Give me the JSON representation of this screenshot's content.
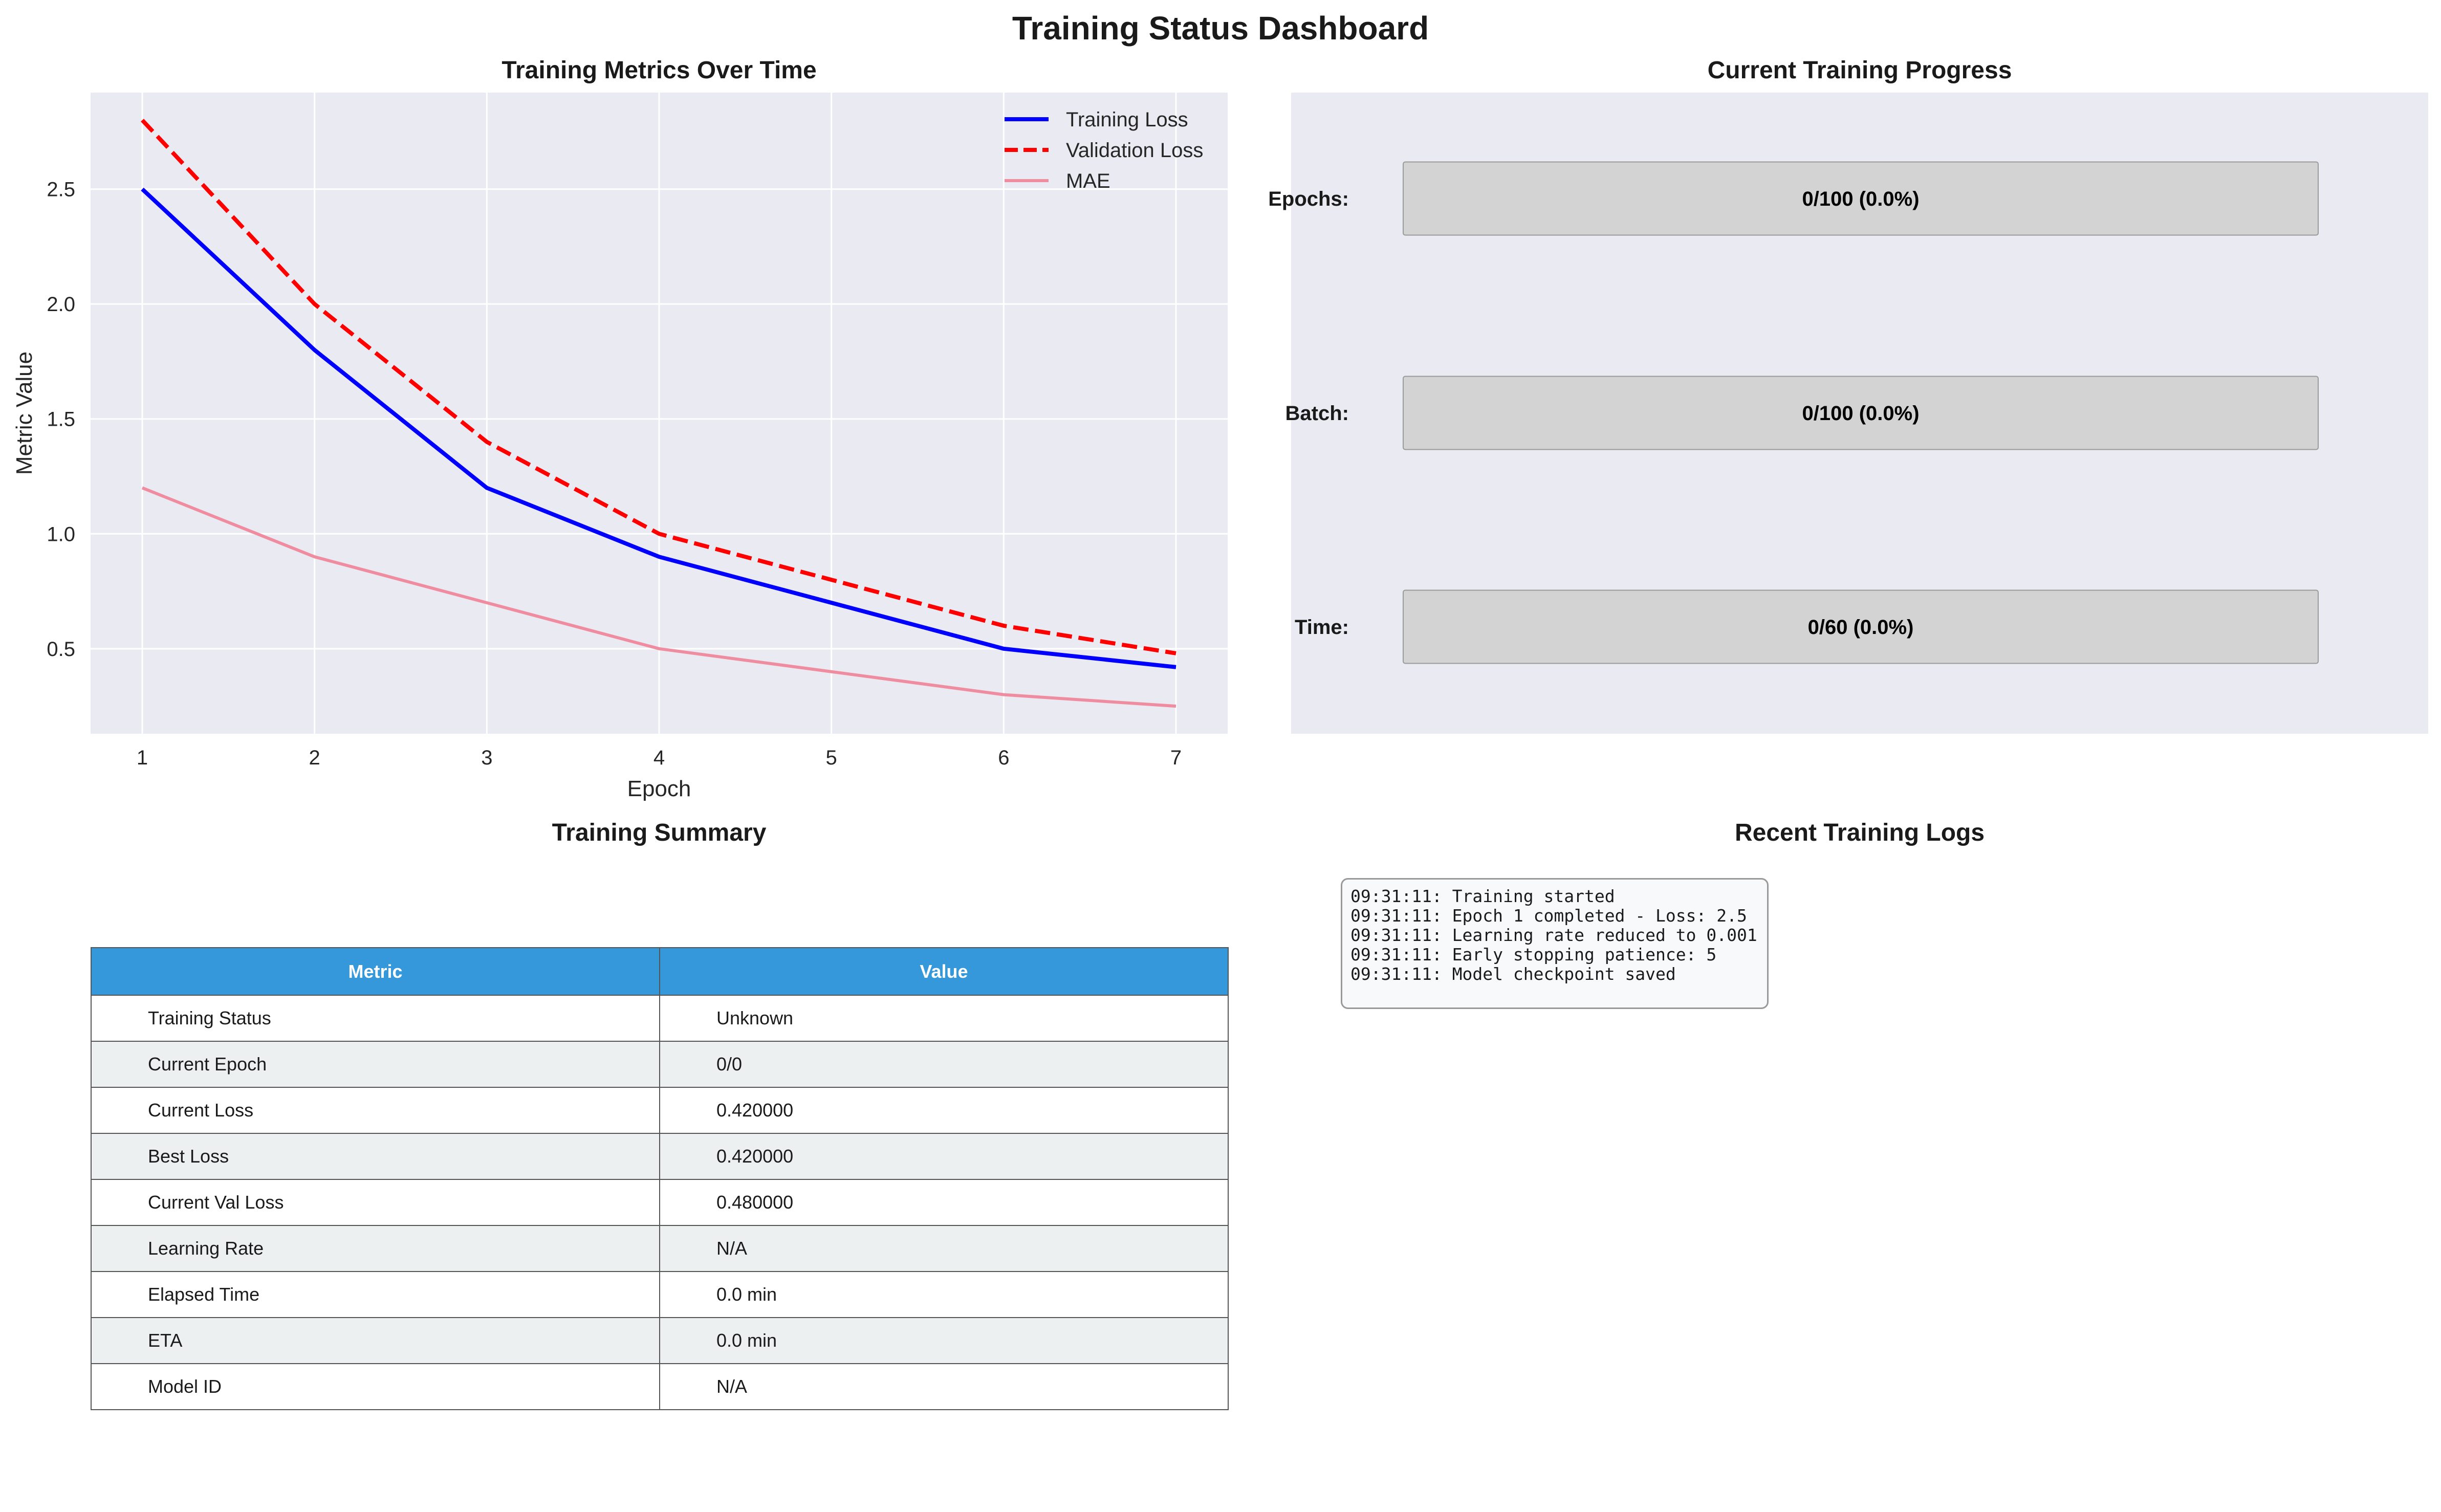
{
  "dashboard": {
    "title": "Training Status Dashboard"
  },
  "metrics_panel": {
    "title": "Training Metrics Over Time"
  },
  "progress_panel": {
    "title": "Current Training Progress",
    "bars": [
      {
        "label": "Epochs:",
        "text": "0/100 (0.0%)",
        "value": 0,
        "total": 100
      },
      {
        "label": "Batch:",
        "text": "0/100 (0.0%)",
        "value": 0,
        "total": 100
      },
      {
        "label": "Time:",
        "text": "0/60 (0.0%)",
        "value": 0,
        "total": 60
      }
    ]
  },
  "summary_panel": {
    "title": "Training Summary",
    "headers": [
      "Metric",
      "Value"
    ],
    "rows": [
      [
        "Training Status",
        "Unknown"
      ],
      [
        "Current Epoch",
        "0/0"
      ],
      [
        "Current Loss",
        "0.420000"
      ],
      [
        "Best Loss",
        "0.420000"
      ],
      [
        "Current Val Loss",
        "0.480000"
      ],
      [
        "Learning Rate",
        "N/A"
      ],
      [
        "Elapsed Time",
        "0.0 min"
      ],
      [
        "ETA",
        "0.0 min"
      ],
      [
        "Model ID",
        "N/A"
      ]
    ]
  },
  "logs_panel": {
    "title": "Recent Training Logs",
    "lines": [
      "09:31:11: Training started",
      "09:31:11: Epoch 1 completed - Loss: 2.5",
      "09:31:11: Learning rate reduced to 0.001",
      "09:31:11: Early stopping patience: 5",
      "09:31:11: Model checkpoint saved"
    ]
  },
  "chart_data": {
    "type": "line",
    "title": "Training Metrics Over Time",
    "xlabel": "Epoch",
    "ylabel": "Metric Value",
    "x": [
      1,
      2,
      3,
      4,
      5,
      6,
      7
    ],
    "xlim": [
      0.7,
      7.3
    ],
    "ylim": [
      0.13,
      2.92
    ],
    "xticks": [
      1,
      2,
      3,
      4,
      5,
      6,
      7
    ],
    "yticks": [
      0.5,
      1.0,
      1.5,
      2.0,
      2.5
    ],
    "grid": true,
    "legend": "top-right",
    "series": [
      {
        "name": "Training Loss",
        "values": [
          2.5,
          1.8,
          1.2,
          0.9,
          0.7,
          0.5,
          0.42
        ],
        "color": "#0000ff",
        "style": "solid"
      },
      {
        "name": "Validation Loss",
        "values": [
          2.8,
          2.0,
          1.4,
          1.0,
          0.8,
          0.6,
          0.48
        ],
        "color": "#ff0000",
        "style": "dashed"
      },
      {
        "name": "MAE",
        "values": [
          1.2,
          0.9,
          0.7,
          0.5,
          0.4,
          0.3,
          0.25
        ],
        "color": "#f08ca0",
        "style": "solid"
      }
    ]
  }
}
